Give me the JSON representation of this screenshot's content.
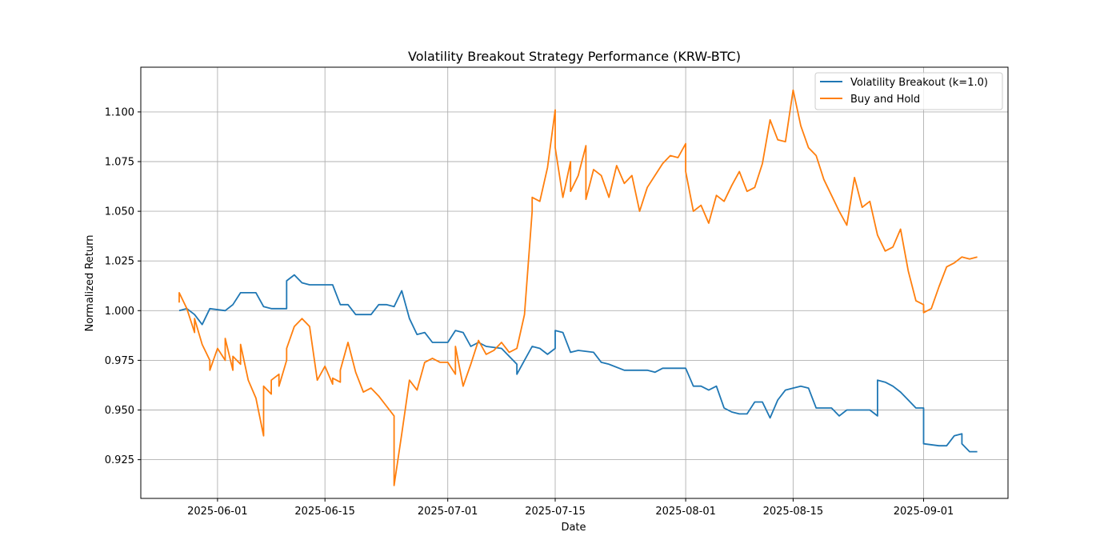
{
  "chart_data": {
    "type": "line",
    "title": "Volatility Breakout Strategy Performance (KRW-BTC)",
    "xlabel": "Date",
    "ylabel": "Normalized Return",
    "x_range": [
      "2025-05-22",
      "2025-09-12"
    ],
    "ylim": [
      0.9055,
      1.1225
    ],
    "x_ticks": [
      "2025-06-01",
      "2025-06-15",
      "2025-07-01",
      "2025-07-15",
      "2025-08-01",
      "2025-08-15",
      "2025-09-01"
    ],
    "y_ticks": [
      "0.925",
      "0.950",
      "0.975",
      "1.000",
      "1.025",
      "1.050",
      "1.075",
      "1.100"
    ],
    "grid": true,
    "legend": "top-right",
    "series": [
      {
        "name": "Volatility Breakout (k=1.0)",
        "color": "#1f77b4",
        "points": [
          [
            "2025-05-27",
            1.0
          ],
          [
            "2025-05-28",
            1.001
          ],
          [
            "2025-05-29",
            0.998
          ],
          [
            "2025-05-30",
            0.993
          ],
          [
            "2025-05-31",
            1.001
          ],
          [
            "2025-06-02",
            1.0
          ],
          [
            "2025-06-03",
            1.003
          ],
          [
            "2025-06-04",
            1.009
          ],
          [
            "2025-06-06",
            1.009
          ],
          [
            "2025-06-07",
            1.002
          ],
          [
            "2025-06-08",
            1.001
          ],
          [
            "2025-06-10",
            1.001
          ],
          [
            "2025-06-10",
            1.015
          ],
          [
            "2025-06-11",
            1.018
          ],
          [
            "2025-06-12",
            1.014
          ],
          [
            "2025-06-13",
            1.013
          ],
          [
            "2025-06-16",
            1.013
          ],
          [
            "2025-06-17",
            1.003
          ],
          [
            "2025-06-18",
            1.003
          ],
          [
            "2025-06-19",
            0.998
          ],
          [
            "2025-06-21",
            0.998
          ],
          [
            "2025-06-22",
            1.003
          ],
          [
            "2025-06-23",
            1.003
          ],
          [
            "2025-06-24",
            1.002
          ],
          [
            "2025-06-25",
            1.01
          ],
          [
            "2025-06-26",
            0.996
          ],
          [
            "2025-06-27",
            0.988
          ],
          [
            "2025-06-28",
            0.989
          ],
          [
            "2025-06-29",
            0.984
          ],
          [
            "2025-07-01",
            0.984
          ],
          [
            "2025-07-02",
            0.99
          ],
          [
            "2025-07-03",
            0.989
          ],
          [
            "2025-07-04",
            0.982
          ],
          [
            "2025-07-05",
            0.984
          ],
          [
            "2025-07-06",
            0.982
          ],
          [
            "2025-07-08",
            0.981
          ],
          [
            "2025-07-09",
            0.977
          ],
          [
            "2025-07-10",
            0.973
          ],
          [
            "2025-07-10",
            0.968
          ],
          [
            "2025-07-11",
            0.975
          ],
          [
            "2025-07-12",
            0.982
          ],
          [
            "2025-07-13",
            0.981
          ],
          [
            "2025-07-14",
            0.978
          ],
          [
            "2025-07-15",
            0.981
          ],
          [
            "2025-07-15",
            0.99
          ],
          [
            "2025-07-16",
            0.989
          ],
          [
            "2025-07-17",
            0.979
          ],
          [
            "2025-07-18",
            0.98
          ],
          [
            "2025-07-20",
            0.979
          ],
          [
            "2025-07-21",
            0.974
          ],
          [
            "2025-07-22",
            0.973
          ],
          [
            "2025-07-24",
            0.97
          ],
          [
            "2025-07-27",
            0.97
          ],
          [
            "2025-07-28",
            0.969
          ],
          [
            "2025-07-29",
            0.971
          ],
          [
            "2025-08-01",
            0.971
          ],
          [
            "2025-08-02",
            0.962
          ],
          [
            "2025-08-03",
            0.962
          ],
          [
            "2025-08-04",
            0.96
          ],
          [
            "2025-08-05",
            0.962
          ],
          [
            "2025-08-06",
            0.951
          ],
          [
            "2025-08-07",
            0.949
          ],
          [
            "2025-08-08",
            0.948
          ],
          [
            "2025-08-09",
            0.948
          ],
          [
            "2025-08-10",
            0.954
          ],
          [
            "2025-08-11",
            0.954
          ],
          [
            "2025-08-12",
            0.946
          ],
          [
            "2025-08-13",
            0.955
          ],
          [
            "2025-08-14",
            0.96
          ],
          [
            "2025-08-15",
            0.961
          ],
          [
            "2025-08-16",
            0.962
          ],
          [
            "2025-08-17",
            0.961
          ],
          [
            "2025-08-18",
            0.951
          ],
          [
            "2025-08-20",
            0.951
          ],
          [
            "2025-08-21",
            0.947
          ],
          [
            "2025-08-22",
            0.95
          ],
          [
            "2025-08-25",
            0.95
          ],
          [
            "2025-08-26",
            0.947
          ],
          [
            "2025-08-26",
            0.965
          ],
          [
            "2025-08-27",
            0.964
          ],
          [
            "2025-08-28",
            0.962
          ],
          [
            "2025-08-29",
            0.959
          ],
          [
            "2025-08-30",
            0.955
          ],
          [
            "2025-08-31",
            0.951
          ],
          [
            "2025-09-01",
            0.951
          ],
          [
            "2025-09-01",
            0.933
          ],
          [
            "2025-09-03",
            0.932
          ],
          [
            "2025-09-04",
            0.932
          ],
          [
            "2025-09-05",
            0.937
          ],
          [
            "2025-09-06",
            0.938
          ],
          [
            "2025-09-06",
            0.933
          ],
          [
            "2025-09-07",
            0.929
          ],
          [
            "2025-09-08",
            0.929
          ]
        ]
      },
      {
        "name": "Buy and Hold",
        "color": "#ff7f0e",
        "points": [
          [
            "2025-05-27",
            1.004
          ],
          [
            "2025-05-27",
            1.009
          ],
          [
            "2025-05-28",
            1.001
          ],
          [
            "2025-05-29",
            0.989
          ],
          [
            "2025-05-29",
            0.996
          ],
          [
            "2025-05-30",
            0.983
          ],
          [
            "2025-05-31",
            0.975
          ],
          [
            "2025-05-31",
            0.97
          ],
          [
            "2025-06-01",
            0.981
          ],
          [
            "2025-06-02",
            0.975
          ],
          [
            "2025-06-02",
            0.986
          ],
          [
            "2025-06-03",
            0.97
          ],
          [
            "2025-06-03",
            0.977
          ],
          [
            "2025-06-04",
            0.973
          ],
          [
            "2025-06-04",
            0.983
          ],
          [
            "2025-06-05",
            0.965
          ],
          [
            "2025-06-06",
            0.956
          ],
          [
            "2025-06-07",
            0.937
          ],
          [
            "2025-06-07",
            0.962
          ],
          [
            "2025-06-08",
            0.958
          ],
          [
            "2025-06-08",
            0.965
          ],
          [
            "2025-06-09",
            0.968
          ],
          [
            "2025-06-09",
            0.962
          ],
          [
            "2025-06-10",
            0.975
          ],
          [
            "2025-06-10",
            0.981
          ],
          [
            "2025-06-11",
            0.992
          ],
          [
            "2025-06-12",
            0.996
          ],
          [
            "2025-06-13",
            0.992
          ],
          [
            "2025-06-14",
            0.965
          ],
          [
            "2025-06-15",
            0.972
          ],
          [
            "2025-06-16",
            0.963
          ],
          [
            "2025-06-16",
            0.966
          ],
          [
            "2025-06-17",
            0.964
          ],
          [
            "2025-06-17",
            0.97
          ],
          [
            "2025-06-18",
            0.984
          ],
          [
            "2025-06-19",
            0.969
          ],
          [
            "2025-06-20",
            0.959
          ],
          [
            "2025-06-21",
            0.961
          ],
          [
            "2025-06-22",
            0.957
          ],
          [
            "2025-06-23",
            0.952
          ],
          [
            "2025-06-24",
            0.947
          ],
          [
            "2025-06-24",
            0.912
          ],
          [
            "2025-06-25",
            0.938
          ],
          [
            "2025-06-26",
            0.965
          ],
          [
            "2025-06-27",
            0.96
          ],
          [
            "2025-06-28",
            0.974
          ],
          [
            "2025-06-29",
            0.976
          ],
          [
            "2025-06-30",
            0.974
          ],
          [
            "2025-07-01",
            0.974
          ],
          [
            "2025-07-02",
            0.968
          ],
          [
            "2025-07-02",
            0.982
          ],
          [
            "2025-07-03",
            0.962
          ],
          [
            "2025-07-04",
            0.973
          ],
          [
            "2025-07-05",
            0.985
          ],
          [
            "2025-07-06",
            0.978
          ],
          [
            "2025-07-07",
            0.98
          ],
          [
            "2025-07-08",
            0.984
          ],
          [
            "2025-07-09",
            0.979
          ],
          [
            "2025-07-10",
            0.981
          ],
          [
            "2025-07-11",
            0.998
          ],
          [
            "2025-07-12",
            1.05
          ],
          [
            "2025-07-12",
            1.057
          ],
          [
            "2025-07-13",
            1.055
          ],
          [
            "2025-07-14",
            1.072
          ],
          [
            "2025-07-15",
            1.101
          ],
          [
            "2025-07-15",
            1.082
          ],
          [
            "2025-07-16",
            1.057
          ],
          [
            "2025-07-17",
            1.075
          ],
          [
            "2025-07-17",
            1.06
          ],
          [
            "2025-07-18",
            1.068
          ],
          [
            "2025-07-19",
            1.083
          ],
          [
            "2025-07-19",
            1.056
          ],
          [
            "2025-07-20",
            1.071
          ],
          [
            "2025-07-21",
            1.068
          ],
          [
            "2025-07-22",
            1.057
          ],
          [
            "2025-07-23",
            1.073
          ],
          [
            "2025-07-24",
            1.064
          ],
          [
            "2025-07-25",
            1.068
          ],
          [
            "2025-07-26",
            1.05
          ],
          [
            "2025-07-27",
            1.062
          ],
          [
            "2025-07-28",
            1.068
          ],
          [
            "2025-07-29",
            1.074
          ],
          [
            "2025-07-30",
            1.078
          ],
          [
            "2025-07-31",
            1.077
          ],
          [
            "2025-08-01",
            1.084
          ],
          [
            "2025-08-01",
            1.07
          ],
          [
            "2025-08-02",
            1.05
          ],
          [
            "2025-08-03",
            1.053
          ],
          [
            "2025-08-04",
            1.044
          ],
          [
            "2025-08-05",
            1.058
          ],
          [
            "2025-08-06",
            1.055
          ],
          [
            "2025-08-07",
            1.063
          ],
          [
            "2025-08-08",
            1.07
          ],
          [
            "2025-08-09",
            1.06
          ],
          [
            "2025-08-10",
            1.062
          ],
          [
            "2025-08-11",
            1.074
          ],
          [
            "2025-08-12",
            1.096
          ],
          [
            "2025-08-13",
            1.086
          ],
          [
            "2025-08-14",
            1.085
          ],
          [
            "2025-08-15",
            1.111
          ],
          [
            "2025-08-16",
            1.093
          ],
          [
            "2025-08-17",
            1.082
          ],
          [
            "2025-08-18",
            1.078
          ],
          [
            "2025-08-19",
            1.066
          ],
          [
            "2025-08-20",
            1.058
          ],
          [
            "2025-08-21",
            1.05
          ],
          [
            "2025-08-22",
            1.043
          ],
          [
            "2025-08-23",
            1.067
          ],
          [
            "2025-08-24",
            1.052
          ],
          [
            "2025-08-25",
            1.055
          ],
          [
            "2025-08-26",
            1.038
          ],
          [
            "2025-08-27",
            1.03
          ],
          [
            "2025-08-28",
            1.032
          ],
          [
            "2025-08-29",
            1.041
          ],
          [
            "2025-08-30",
            1.02
          ],
          [
            "2025-08-31",
            1.005
          ],
          [
            "2025-09-01",
            1.003
          ],
          [
            "2025-09-01",
            0.999
          ],
          [
            "2025-09-02",
            1.001
          ],
          [
            "2025-09-03",
            1.012
          ],
          [
            "2025-09-04",
            1.022
          ],
          [
            "2025-09-05",
            1.024
          ],
          [
            "2025-09-06",
            1.027
          ],
          [
            "2025-09-07",
            1.026
          ],
          [
            "2025-09-08",
            1.027
          ]
        ]
      }
    ]
  }
}
